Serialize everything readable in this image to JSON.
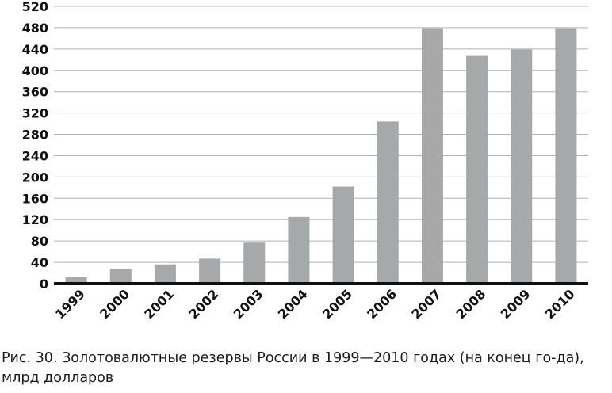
{
  "chart_data": {
    "type": "bar",
    "categories": [
      "1999",
      "2000",
      "2001",
      "2002",
      "2003",
      "2004",
      "2005",
      "2006",
      "2007",
      "2008",
      "2009",
      "2010"
    ],
    "values": [
      12,
      28,
      36,
      47,
      77,
      125,
      182,
      304,
      479,
      427,
      439,
      479
    ],
    "ylim": [
      0,
      520
    ],
    "yticks": [
      "0",
      "40",
      "80",
      "120",
      "160",
      "200",
      "240",
      "280",
      "320",
      "360",
      "400",
      "440",
      "480",
      "520"
    ],
    "grid": true,
    "bar_color": "#a7a8aa",
    "grid_color": "#b0b0b0",
    "axis_color": "#111111"
  },
  "caption": "Рис. 30. Золотовалютные резервы России в 1999—2010 годах (на конец го-да), млрд долларов"
}
